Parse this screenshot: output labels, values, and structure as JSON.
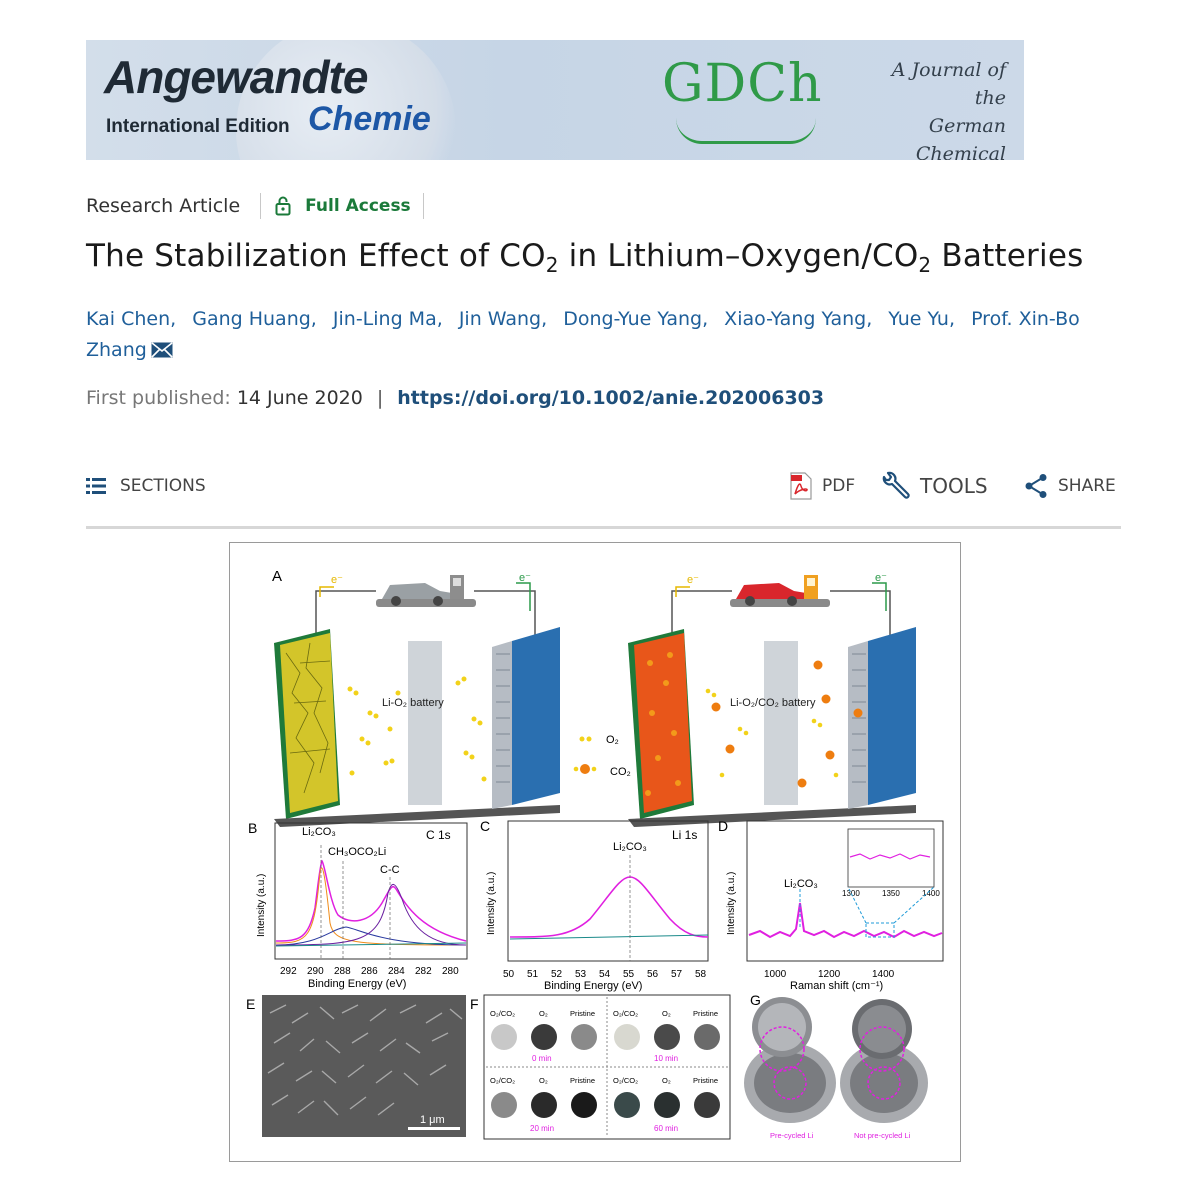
{
  "banner": {
    "brand_line1": "Angewandte",
    "brand_line2": "International Edition",
    "brand_line3": "Chemie",
    "society_logo": "GDCh",
    "tagline": [
      "A Journal of the",
      "German",
      "Chemical Society"
    ]
  },
  "article": {
    "type": "Research Article",
    "access_label": "Full Access",
    "title_parts": [
      "The Stabilization Effect of CO",
      "2",
      " in Lithium–Oxygen/CO",
      "2",
      " Batteries"
    ],
    "authors": [
      "Kai Chen,",
      "Gang Huang,",
      "Jin-Ling Ma,",
      "Jin Wang,",
      "Dong-Yue Yang,",
      "Xiao-Yang Yang,",
      "Yue Yu,",
      "Prof. Xin-Bo Zhang"
    ],
    "first_published_label": "First published:",
    "first_published_date": "14 June 2020",
    "separator": "|",
    "doi": "https://doi.org/10.1002/anie.202006303"
  },
  "toolbar": {
    "sections": "SECTIONS",
    "pdf": "PDF",
    "tools": "TOOLS",
    "share": "SHARE"
  },
  "figure": {
    "panel_letters": [
      "A",
      "B",
      "C",
      "D",
      "E",
      "F",
      "G"
    ],
    "panelA": {
      "electron_label": "e⁻",
      "left_battery": "Li-O₂ battery",
      "right_battery": "Li-O₂/CO₂ battery",
      "legend": [
        "O₂",
        "CO₂"
      ]
    },
    "panelB": {
      "title": "C 1s",
      "peaks": [
        "Li₂CO₃",
        "CH₃OCO₂Li",
        "C-C"
      ],
      "ylabel": "Intensity (a.u.)",
      "xlabel": "Binding Energy (eV)",
      "xticks": [
        "292",
        "290",
        "288",
        "286",
        "284",
        "282",
        "280"
      ]
    },
    "panelC": {
      "title": "Li 1s",
      "peak": "Li₂CO₃",
      "ylabel": "Intensity (a.u.)",
      "xlabel": "Binding Energy (eV)",
      "xticks": [
        "50",
        "51",
        "52",
        "53",
        "54",
        "55",
        "56",
        "57",
        "58"
      ]
    },
    "panelD": {
      "peak": "Li₂CO₃",
      "ylabel": "Intensity (a.u.)",
      "xlabel": "Raman shift (cm⁻¹)",
      "xticks": [
        "1000",
        "1200",
        "1400"
      ],
      "inset_xticks": [
        "1300",
        "1350",
        "1400"
      ]
    },
    "panelE": {
      "scalebar": "1 μm"
    },
    "panelF": {
      "headers": [
        "O₂/CO₂",
        "O₂",
        "Pristine"
      ],
      "times": [
        "0 min",
        "10 min",
        "20 min",
        "60 min"
      ]
    },
    "panelG": {
      "captions": [
        "Pre-cycled Li",
        "Not pre-cycled Li"
      ]
    },
    "colors": {
      "fit": "#e020e0",
      "baseline": "#1a8a8a",
      "accent": "#1f9bd8"
    }
  }
}
